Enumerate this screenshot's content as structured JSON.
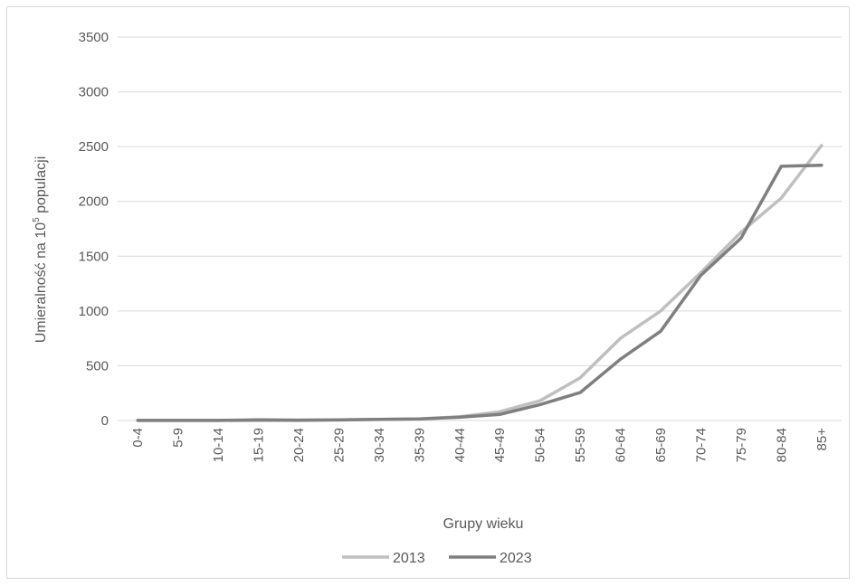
{
  "chart_data": {
    "type": "line",
    "title": "",
    "xlabel": "Grupy wieku",
    "ylabel": {
      "text": "Umieralność na 10",
      "superscript": "5",
      "suffix": " populacji"
    },
    "ylim": [
      0,
      3500
    ],
    "yticks": [
      "0",
      "500",
      "1000",
      "1500",
      "2000",
      "2500",
      "3000",
      "3500"
    ],
    "grid": true,
    "legend_position": "bottom",
    "categories": [
      "0-4",
      "5-9",
      "10-14",
      "15-19",
      "20-24",
      "25-29",
      "30-34",
      "35-39",
      "40-44",
      "45-49",
      "50-54",
      "55-59",
      "60-64",
      "65-69",
      "70-74",
      "75-79",
      "80-84",
      "85+"
    ],
    "series": [
      {
        "name": "2013",
        "color": "#bfbfbf",
        "values": [
          1,
          1,
          1,
          9,
          5,
          7,
          10,
          15,
          35,
          80,
          180,
          390,
          750,
          1000,
          1350,
          1720,
          2030,
          2510
        ]
      },
      {
        "name": "2023",
        "color": "#7f7f7f",
        "values": [
          1,
          1,
          1,
          3,
          2,
          5,
          10,
          14,
          30,
          55,
          145,
          255,
          560,
          815,
          1325,
          1665,
          2320,
          2330
        ]
      }
    ]
  }
}
